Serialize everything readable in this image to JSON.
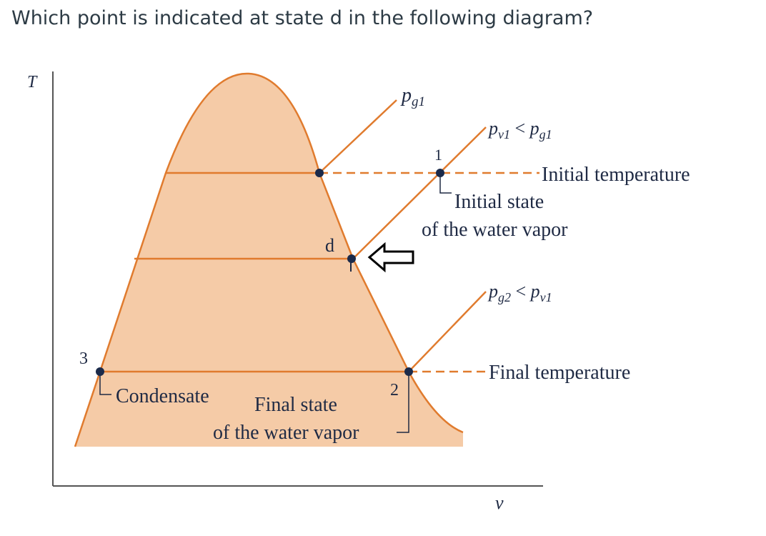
{
  "question": "Which point is indicated at state d in the following diagram?",
  "axes": {
    "y_label": "T",
    "x_label": "v"
  },
  "pressure_labels": {
    "pg1": {
      "base": "p",
      "sub": "g1"
    },
    "pv1": {
      "base": "p",
      "sub": "v1",
      "rel": " < ",
      "base2": "p",
      "sub2": "g1"
    },
    "pg2": {
      "base": "p",
      "sub": "g2",
      "rel": " < ",
      "base2": "p",
      "sub2": "v1"
    }
  },
  "state_labels": {
    "s1": "1",
    "s2": "2",
    "s3": "3",
    "d": "d"
  },
  "annotations": {
    "initial_temperature": "Initial temperature",
    "initial_state_l1": "Initial state",
    "initial_state_l2": "of the water vapor",
    "final_temperature": "Final temperature",
    "condensate": "Condensate",
    "final_state_l1": "Final state",
    "final_state_l2": "of the water vapor"
  },
  "colors": {
    "dome_fill": "#f5cba7",
    "curve": "#e07b2e",
    "point": "#1b2a4a",
    "dash": "#e07b2e",
    "axis": "#555555",
    "text": "#1f2a44"
  }
}
